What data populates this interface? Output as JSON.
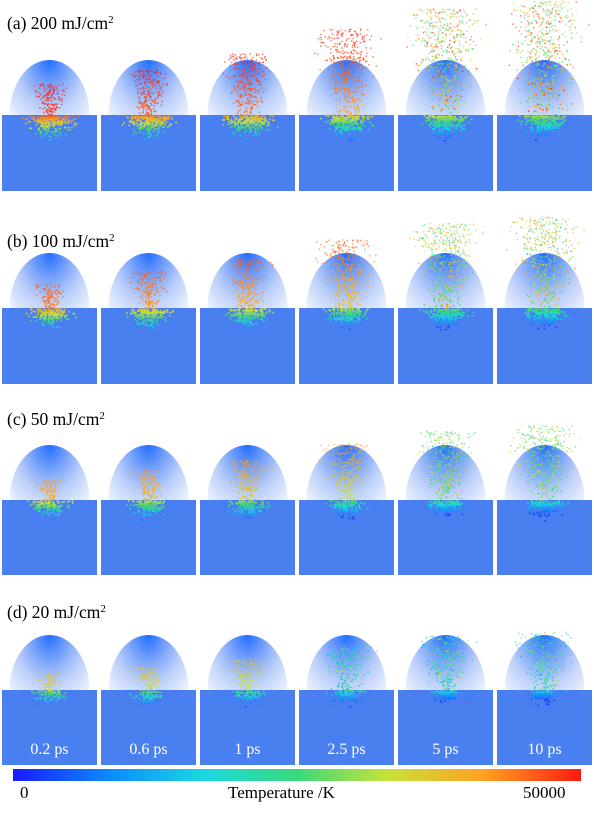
{
  "rows": [
    {
      "label_main": "(a) 200 mJ/cm",
      "label_sup": "2",
      "fluence": 200
    },
    {
      "label_main": "(b) 100 mJ/cm",
      "label_sup": "2",
      "fluence": 100
    },
    {
      "label_main": "(c) 50 mJ/cm",
      "label_sup": "2",
      "fluence": 50
    },
    {
      "label_main": "(d) 20 mJ/cm",
      "label_sup": "2",
      "fluence": 20
    }
  ],
  "time_labels": [
    "0.2 ps",
    "0.6 ps",
    "1 ps",
    "2.5 ps",
    "5 ps",
    "10 ps"
  ],
  "colorbar": {
    "min_label": "0",
    "title": "Temperature /K",
    "max_label": "50000",
    "colors": [
      "#1a1aff",
      "#0a8cff",
      "#1ad9e0",
      "#39d97a",
      "#c6e23a",
      "#ffa020",
      "#ff1a10"
    ]
  },
  "substrate_color": "#4a7ff0"
}
